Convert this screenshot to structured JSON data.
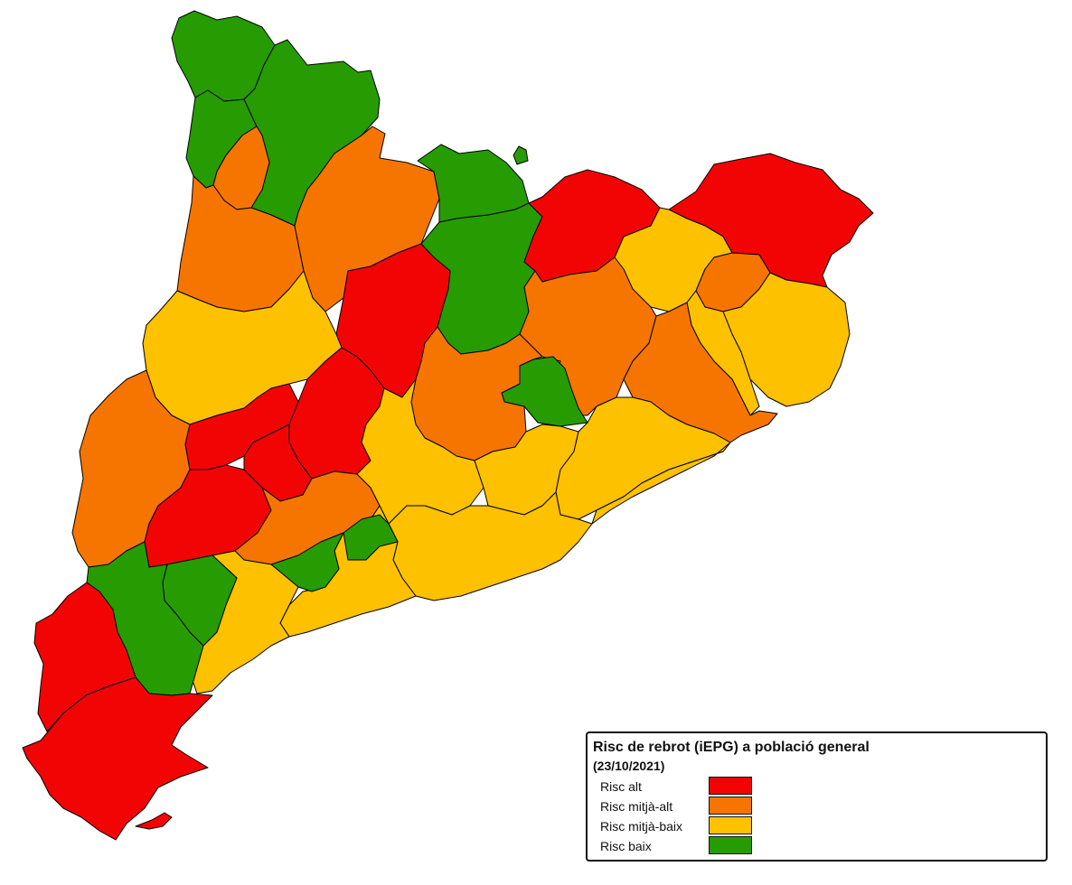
{
  "legend": {
    "title": "Risc de rebrot (iEPG) a població general",
    "date": "(23/10/2021)",
    "items": [
      {
        "label": "Risc alt",
        "color": "#f30404"
      },
      {
        "label": "Risc mitjà-alt",
        "color": "#f67500"
      },
      {
        "label": "Risc mitjà-baix",
        "color": "#fdc100"
      },
      {
        "label": "Risc baix",
        "color": "#269c02"
      }
    ]
  }
}
